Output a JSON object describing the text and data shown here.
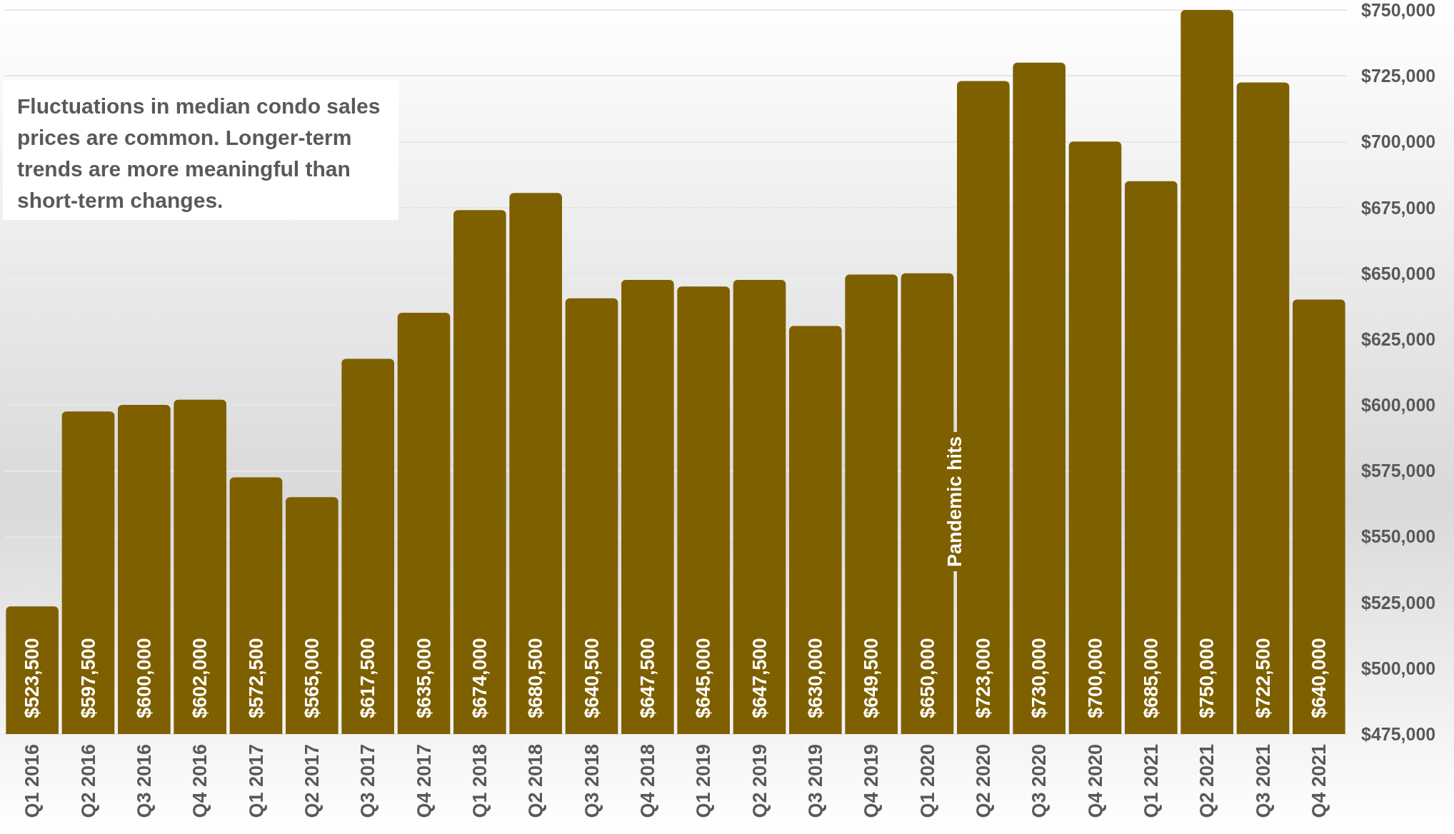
{
  "chart_data": {
    "type": "bar",
    "categories": [
      "Q1 2016",
      "Q2 2016",
      "Q3 2016",
      "Q4 2016",
      "Q1 2017",
      "Q2 2017",
      "Q3 2017",
      "Q4 2017",
      "Q1 2018",
      "Q2 2018",
      "Q3 2018",
      "Q4 2018",
      "Q1 2019",
      "Q2 2019",
      "Q3 2019",
      "Q4 2019",
      "Q1 2020",
      "Q2 2020",
      "Q3 2020",
      "Q4 2020",
      "Q1 2021",
      "Q2 2021",
      "Q3 2021",
      "Q4 2021"
    ],
    "values": [
      523500,
      597500,
      600000,
      602000,
      572500,
      565000,
      617500,
      635000,
      674000,
      680500,
      640500,
      647500,
      645000,
      647500,
      630000,
      649500,
      650000,
      723000,
      730000,
      700000,
      685000,
      750000,
      722500,
      640000
    ],
    "value_labels": [
      "$523,500",
      "$597,500",
      "$600,000",
      "$602,000",
      "$572,500",
      "$565,000",
      "$617,500",
      "$635,000",
      "$674,000",
      "$680,500",
      "$640,500",
      "$647,500",
      "$645,000",
      "$647,500",
      "$630,000",
      "$649,500",
      "$650,000",
      "$723,000",
      "$730,000",
      "$700,000",
      "$685,000",
      "$750,000",
      "$722,500",
      "$640,000"
    ],
    "color": "#7f6000",
    "ylim": [
      475000,
      750000
    ],
    "yticks": [
      {
        "value": 475000,
        "label": "$475,000"
      },
      {
        "value": 500000,
        "label": "$500,000"
      },
      {
        "value": 525000,
        "label": "$525,000"
      },
      {
        "value": 550000,
        "label": "$550,000"
      },
      {
        "value": 575000,
        "label": "$575,000"
      },
      {
        "value": 600000,
        "label": "$600,000"
      },
      {
        "value": 625000,
        "label": "$625,000"
      },
      {
        "value": 650000,
        "label": "$650,000"
      },
      {
        "value": 675000,
        "label": "$675,000"
      },
      {
        "value": 700000,
        "label": "$700,000"
      },
      {
        "value": 725000,
        "label": "$725,000"
      },
      {
        "value": 750000,
        "label": "$750,000"
      }
    ],
    "grid": "y",
    "annotations": [
      "Fluctuations in median condo sales prices are common. Longer-term trends are more meaningful than short-term changes.",
      "Pandemic hits"
    ]
  }
}
